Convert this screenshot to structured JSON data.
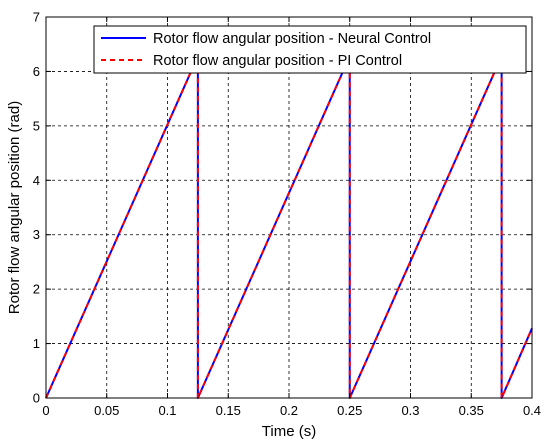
{
  "chart_data": {
    "type": "line",
    "xlabel": "Time (s)",
    "ylabel": "Rotor flow angular position (rad)",
    "xlim": [
      0,
      0.4
    ],
    "ylim": [
      0,
      7
    ],
    "xticks": [
      "0",
      "0.05",
      "0.1",
      "0.15",
      "0.2",
      "0.25",
      "0.3",
      "0.35",
      "0.4"
    ],
    "yticks": [
      "0",
      "1",
      "2",
      "3",
      "4",
      "5",
      "6",
      "7"
    ],
    "grid": true,
    "legend_position": "top-right",
    "series": [
      {
        "name": "Rotor flow angular position - Neural Control",
        "color": "#0000ff",
        "style": "solid",
        "x": [
          0,
          0.125,
          0.125,
          0.25,
          0.25,
          0.375,
          0.375,
          0.4
        ],
        "y": [
          0,
          6.28,
          0,
          6.28,
          0,
          6.28,
          0,
          1.28
        ]
      },
      {
        "name": "Rotor flow angular position - PI Control",
        "color": "#ff0000",
        "style": "dashed",
        "x": [
          0,
          0.125,
          0.125,
          0.25,
          0.25,
          0.375,
          0.375,
          0.4
        ],
        "y": [
          0,
          6.28,
          0,
          6.28,
          0,
          6.28,
          0,
          1.28
        ]
      }
    ]
  }
}
